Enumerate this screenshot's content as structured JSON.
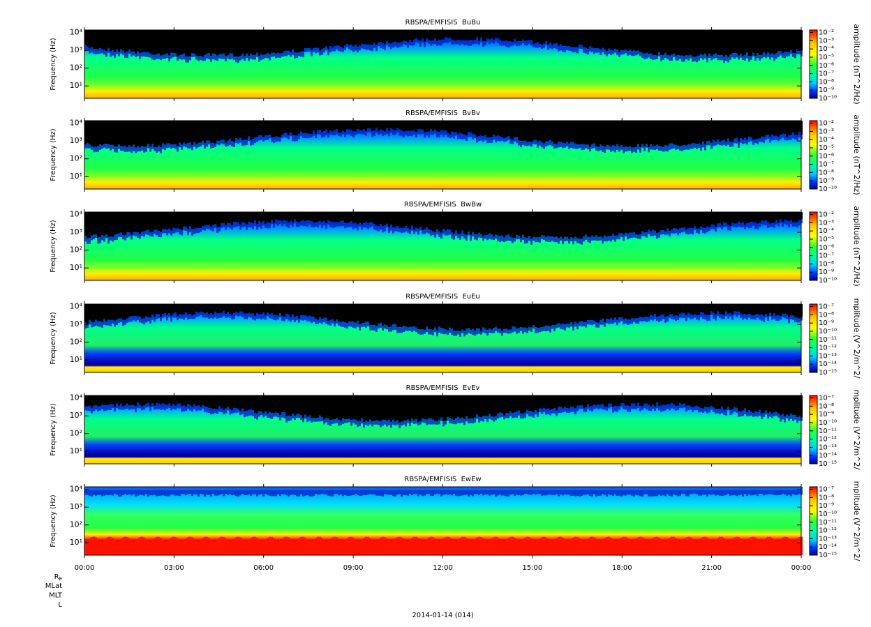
{
  "chart_data": [
    {
      "type": "spectrogram",
      "title": "RBSPA/EMFISIS  BuBu",
      "ylabel": "Frequency (Hz)",
      "ylog": true,
      "ylim": [
        2,
        14000
      ],
      "yticks": [
        {
          "value": 10,
          "label": "10¹"
        },
        {
          "value": 100,
          "label": "10²"
        },
        {
          "value": 1000,
          "label": "10³"
        },
        {
          "value": 10000,
          "label": "10⁴"
        }
      ],
      "colorbar": {
        "label": "amplitude (nT^2/Hz)",
        "log": true,
        "lim": [
          1e-10,
          0.02
        ],
        "ticks": [
          {
            "value": 0.01,
            "label": "10⁻²"
          },
          {
            "value": 0.001,
            "label": "10⁻³"
          },
          {
            "value": 0.0001,
            "label": "10⁻⁴"
          },
          {
            "value": 1e-05,
            "label": "10⁻⁵"
          },
          {
            "value": 1e-06,
            "label": "10⁻⁶"
          },
          {
            "value": 1e-07,
            "label": "10⁻⁷"
          },
          {
            "value": 1e-08,
            "label": "10⁻⁸"
          },
          {
            "value": 1e-09,
            "label": "10⁻⁹"
          },
          {
            "value": 1e-10,
            "label": "10⁻¹⁰"
          }
        ]
      }
    },
    {
      "type": "spectrogram",
      "title": "RBSPA/EMFISIS  BvBv",
      "ylabel": "Frequency (Hz)",
      "ylog": true,
      "ylim": [
        2,
        14000
      ],
      "yticks": [
        {
          "value": 10,
          "label": "10¹"
        },
        {
          "value": 100,
          "label": "10²"
        },
        {
          "value": 1000,
          "label": "10³"
        },
        {
          "value": 10000,
          "label": "10⁴"
        }
      ],
      "colorbar": {
        "label": "amplitude (nT^2/Hz)",
        "log": true,
        "lim": [
          1e-10,
          0.02
        ],
        "ticks": [
          {
            "value": 0.01,
            "label": "10⁻²"
          },
          {
            "value": 0.001,
            "label": "10⁻³"
          },
          {
            "value": 0.0001,
            "label": "10⁻⁴"
          },
          {
            "value": 1e-05,
            "label": "10⁻⁵"
          },
          {
            "value": 1e-06,
            "label": "10⁻⁶"
          },
          {
            "value": 1e-07,
            "label": "10⁻⁷"
          },
          {
            "value": 1e-08,
            "label": "10⁻⁸"
          },
          {
            "value": 1e-09,
            "label": "10⁻⁹"
          },
          {
            "value": 1e-10,
            "label": "10⁻¹⁰"
          }
        ]
      }
    },
    {
      "type": "spectrogram",
      "title": "RBSPA/EMFISIS  BwBw",
      "ylabel": "Frequency (Hz)",
      "ylog": true,
      "ylim": [
        2,
        14000
      ],
      "yticks": [
        {
          "value": 10,
          "label": "10¹"
        },
        {
          "value": 100,
          "label": "10²"
        },
        {
          "value": 1000,
          "label": "10³"
        },
        {
          "value": 10000,
          "label": "10⁴"
        }
      ],
      "colorbar": {
        "label": "amplitude (nT^2/Hz)",
        "log": true,
        "lim": [
          1e-10,
          0.02
        ],
        "ticks": [
          {
            "value": 0.01,
            "label": "10⁻²"
          },
          {
            "value": 0.001,
            "label": "10⁻³"
          },
          {
            "value": 0.0001,
            "label": "10⁻⁴"
          },
          {
            "value": 1e-05,
            "label": "10⁻⁵"
          },
          {
            "value": 1e-06,
            "label": "10⁻⁶"
          },
          {
            "value": 1e-07,
            "label": "10⁻⁷"
          },
          {
            "value": 1e-08,
            "label": "10⁻⁸"
          },
          {
            "value": 1e-09,
            "label": "10⁻⁹"
          },
          {
            "value": 1e-10,
            "label": "10⁻¹⁰"
          }
        ]
      }
    },
    {
      "type": "spectrogram",
      "title": "RBSPA/EMFISIS  EuEu",
      "ylabel": "Frequency (Hz)",
      "ylog": true,
      "ylim": [
        2,
        14000
      ],
      "yticks": [
        {
          "value": 10,
          "label": "10¹"
        },
        {
          "value": 100,
          "label": "10²"
        },
        {
          "value": 1000,
          "label": "10³"
        },
        {
          "value": 10000,
          "label": "10⁴"
        }
      ],
      "colorbar": {
        "label": "mplitude (V^2/m^2/",
        "log": true,
        "lim": [
          1e-15,
          2e-07
        ],
        "ticks": [
          {
            "value": 1e-07,
            "label": "10⁻⁷"
          },
          {
            "value": 1e-08,
            "label": "10⁻⁸"
          },
          {
            "value": 1e-09,
            "label": "10⁻⁹"
          },
          {
            "value": 1e-10,
            "label": "10⁻¹⁰"
          },
          {
            "value": 1e-11,
            "label": "10⁻¹¹"
          },
          {
            "value": 1e-12,
            "label": "10⁻¹²"
          },
          {
            "value": 1e-13,
            "label": "10⁻¹³"
          },
          {
            "value": 1e-14,
            "label": "10⁻¹⁴"
          },
          {
            "value": 1e-15,
            "label": "10⁻¹⁵"
          }
        ]
      }
    },
    {
      "type": "spectrogram",
      "title": "RBSPA/EMFISIS  EvEv",
      "ylabel": "Frequency (Hz)",
      "ylog": true,
      "ylim": [
        2,
        14000
      ],
      "yticks": [
        {
          "value": 10,
          "label": "10¹"
        },
        {
          "value": 100,
          "label": "10²"
        },
        {
          "value": 1000,
          "label": "10³"
        },
        {
          "value": 10000,
          "label": "10⁴"
        }
      ],
      "colorbar": {
        "label": "mplitude (V^2/m^2/",
        "log": true,
        "lim": [
          1e-15,
          2e-07
        ],
        "ticks": [
          {
            "value": 1e-07,
            "label": "10⁻⁷"
          },
          {
            "value": 1e-08,
            "label": "10⁻⁸"
          },
          {
            "value": 1e-09,
            "label": "10⁻⁹"
          },
          {
            "value": 1e-10,
            "label": "10⁻¹⁰"
          },
          {
            "value": 1e-11,
            "label": "10⁻¹¹"
          },
          {
            "value": 1e-12,
            "label": "10⁻¹²"
          },
          {
            "value": 1e-13,
            "label": "10⁻¹³"
          },
          {
            "value": 1e-14,
            "label": "10⁻¹⁴"
          },
          {
            "value": 1e-15,
            "label": "10⁻¹⁵"
          }
        ]
      }
    },
    {
      "type": "spectrogram",
      "title": "RBSPA/EMFISIS  EwEw",
      "ylabel": "Frequency (Hz)",
      "ylog": true,
      "ylim": [
        2,
        14000
      ],
      "yticks": [
        {
          "value": 10,
          "label": "10¹"
        },
        {
          "value": 100,
          "label": "10²"
        },
        {
          "value": 1000,
          "label": "10³"
        },
        {
          "value": 10000,
          "label": "10⁴"
        }
      ],
      "colorbar": {
        "label": "mplitude (V^2/m^2/",
        "log": true,
        "lim": [
          1e-15,
          2e-07
        ],
        "ticks": [
          {
            "value": 1e-07,
            "label": "10⁻⁷"
          },
          {
            "value": 1e-08,
            "label": "10⁻⁸"
          },
          {
            "value": 1e-09,
            "label": "10⁻⁹"
          },
          {
            "value": 1e-10,
            "label": "10⁻¹⁰"
          },
          {
            "value": 1e-11,
            "label": "10⁻¹¹"
          },
          {
            "value": 1e-12,
            "label": "10⁻¹²"
          },
          {
            "value": 1e-13,
            "label": "10⁻¹³"
          },
          {
            "value": 1e-14,
            "label": "10⁻¹⁴"
          },
          {
            "value": 1e-15,
            "label": "10⁻¹⁵"
          }
        ]
      },
      "xlim": [
        0,
        24
      ],
      "xticks": [
        {
          "value": 0,
          "label": "00:00"
        },
        {
          "value": 3,
          "label": "03:00"
        },
        {
          "value": 6,
          "label": "06:00"
        },
        {
          "value": 9,
          "label": "09:00"
        },
        {
          "value": 12,
          "label": "12:00"
        },
        {
          "value": 15,
          "label": "15:00"
        },
        {
          "value": 18,
          "label": "18:00"
        },
        {
          "value": 21,
          "label": "21:00"
        },
        {
          "value": 24,
          "label": "00:00"
        }
      ]
    }
  ],
  "footer": {
    "re_label": {
      "base": "R",
      "sub": "E"
    },
    "ephemeris": [
      "MLat",
      "MLT",
      "L"
    ],
    "date": "2014-01-14 (014)"
  }
}
